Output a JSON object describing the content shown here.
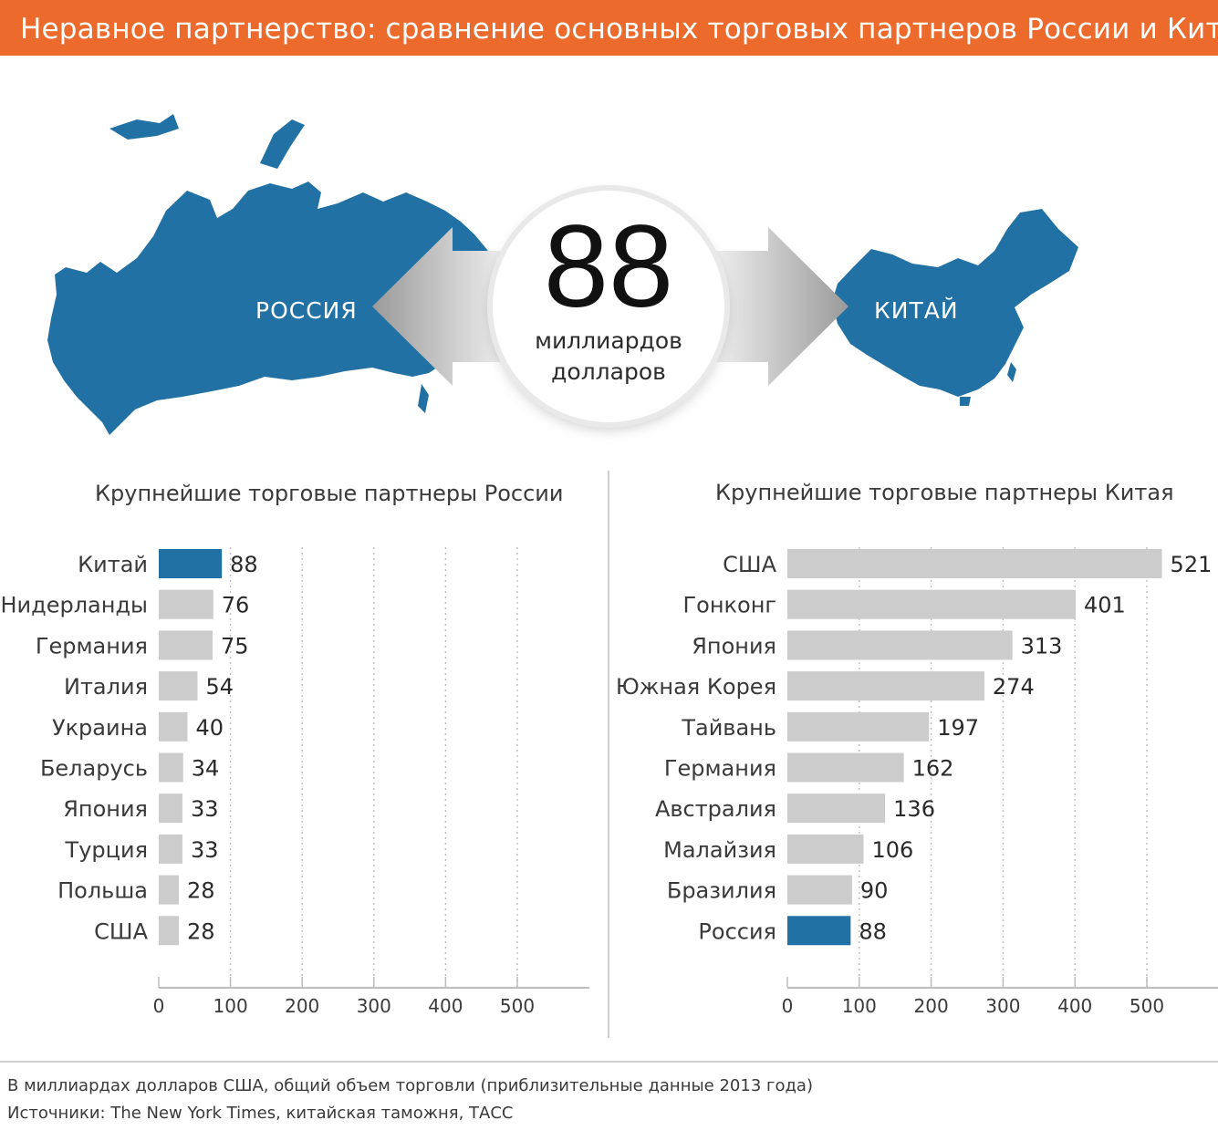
{
  "header": {
    "title": "Неравное партнерство: сравнение основных торговых партнеров России и Китая"
  },
  "hero": {
    "russia_label": "РОССИЯ",
    "china_label": "КИТАЙ",
    "value": "88",
    "unit_line1": "миллиардов",
    "unit_line2": "долларов"
  },
  "colors": {
    "header": "#ec6a2c",
    "map": "#2271a4",
    "highlight": "#2271a4",
    "bar": "#cccccc"
  },
  "chart_data": [
    {
      "type": "bar",
      "orientation": "horizontal",
      "title": "Крупнейшие торговые партнеры России",
      "categories": [
        "Китай",
        "Нидерланды",
        "Германия",
        "Италия",
        "Украина",
        "Беларусь",
        "Япония",
        "Турция",
        "Польша",
        "США"
      ],
      "values": [
        88,
        76,
        75,
        54,
        40,
        34,
        33,
        33,
        28,
        28
      ],
      "highlight": "Китай",
      "xlim": [
        0,
        600
      ],
      "ticks": [
        0,
        100,
        200,
        300,
        400,
        500
      ],
      "grid": "vertical dotted"
    },
    {
      "type": "bar",
      "orientation": "horizontal",
      "title": "Крупнейшие торговые партнеры Китая",
      "categories": [
        "США",
        "Гонконг",
        "Япония",
        "Южная Корея",
        "Тайвань",
        "Германия",
        "Австралия",
        "Малайзия",
        "Бразилия",
        "Россия"
      ],
      "values": [
        521,
        401,
        313,
        274,
        197,
        162,
        136,
        106,
        90,
        88
      ],
      "highlight": "Россия",
      "xlim": [
        0,
        600
      ],
      "ticks": [
        0,
        100,
        200,
        300,
        400,
        500
      ],
      "grid": "vertical dotted"
    }
  ],
  "footer": {
    "note": "В миллиардах долларов США, общий объем торговли (приблизительные данные 2013 года)",
    "sources": "Источники: The New York Times, китайская таможня, ТАСС"
  }
}
